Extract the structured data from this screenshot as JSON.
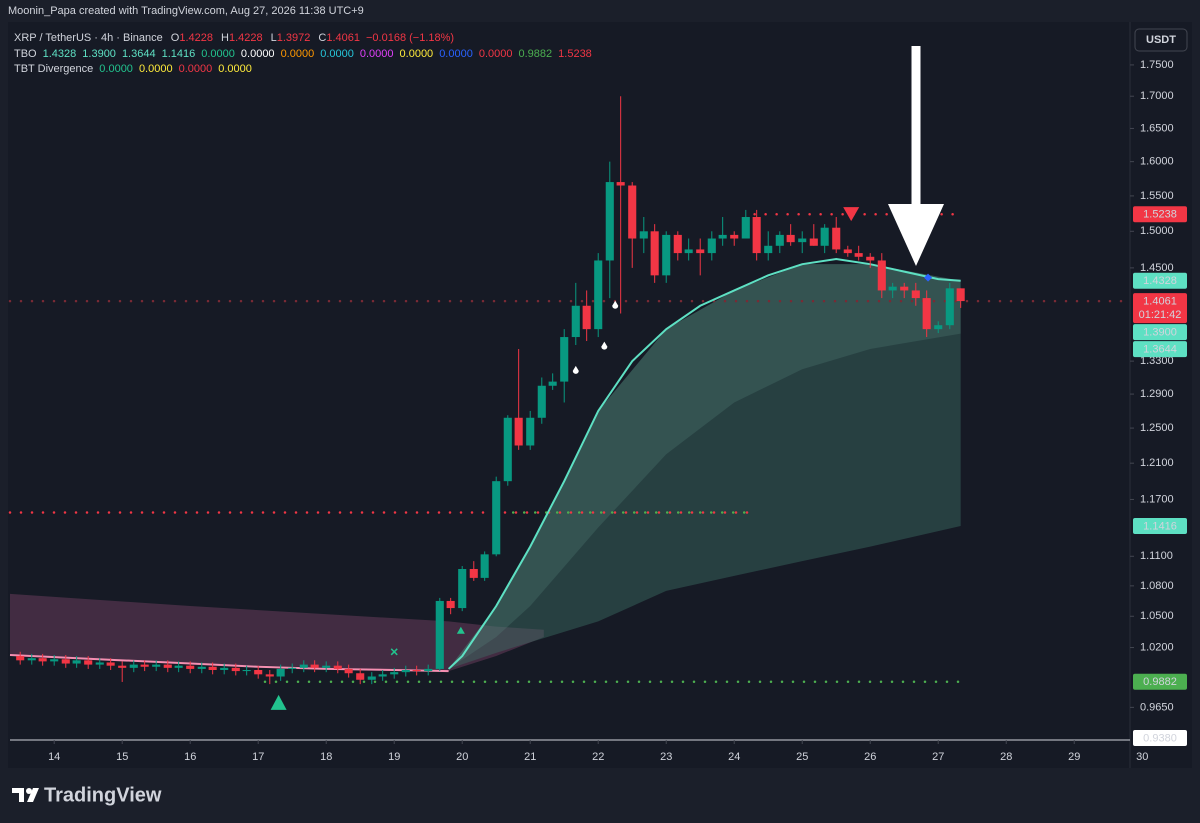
{
  "header": {
    "credit": "Moonin_Papa created with TradingView.com, Aug 27, 2026 11:38 UTC+9",
    "symbol": "XRP / TetherUS · 4h · Binance",
    "ohlc": [
      {
        "label": "O",
        "value": "1.4228"
      },
      {
        "label": "H",
        "value": "1.4228"
      },
      {
        "label": "L",
        "value": "1.3972"
      },
      {
        "label": "C",
        "value": "1.4061"
      }
    ],
    "change": "−0.0168 (−1.18%)"
  },
  "indicators": [
    {
      "name": "TBO",
      "values": [
        {
          "text": "1.4328",
          "color": "#5ee0c3"
        },
        {
          "text": "1.3900",
          "color": "#5ee0c3"
        },
        {
          "text": "1.3644",
          "color": "#5ee0c3"
        },
        {
          "text": "1.1416",
          "color": "#5ee0c3"
        },
        {
          "text": "0.0000",
          "color": "#22c38e"
        },
        {
          "text": "0.0000",
          "color": "#ffffff"
        },
        {
          "text": "0.0000",
          "color": "#ff9800"
        },
        {
          "text": "0.0000",
          "color": "#26c6da"
        },
        {
          "text": "0.0000",
          "color": "#e040fb"
        },
        {
          "text": "0.0000",
          "color": "#ffeb3b"
        },
        {
          "text": "0.0000",
          "color": "#2962ff"
        },
        {
          "text": "0.0000",
          "color": "#f23645"
        },
        {
          "text": "0.9882",
          "color": "#4caf50"
        },
        {
          "text": "1.5238",
          "color": "#f23645"
        }
      ]
    },
    {
      "name": "TBT Divergence",
      "values": [
        {
          "text": "0.0000",
          "color": "#22c38e"
        },
        {
          "text": "0.0000",
          "color": "#ffeb3b"
        },
        {
          "text": "0.0000",
          "color": "#f23645"
        },
        {
          "text": "0.0000",
          "color": "#ffeb3b"
        }
      ]
    }
  ],
  "currency": "USDT",
  "brand": "TradingView",
  "chart_data": {
    "type": "candlestick",
    "log_scale": true,
    "grid": false,
    "up_color": "#089981",
    "down_color": "#f23645",
    "xlim": [
      13.35,
      29.82
    ],
    "xticks": [
      14,
      15,
      16,
      17,
      18,
      19,
      20,
      21,
      22,
      23,
      24,
      25,
      26,
      27,
      28,
      29,
      30
    ],
    "ylim": [
      0.938,
      1.821
    ],
    "yticks": [
      {
        "value": 1.75,
        "label": "1.7500"
      },
      {
        "value": 1.7,
        "label": "1.7000"
      },
      {
        "value": 1.65,
        "label": "1.6500"
      },
      {
        "value": 1.6,
        "label": "1.6000"
      },
      {
        "value": 1.55,
        "label": "1.5500"
      },
      {
        "value": 1.5,
        "label": "1.5000"
      },
      {
        "value": 1.45,
        "label": "1.4500"
      },
      {
        "value": 1.33,
        "label": "1.3300"
      },
      {
        "value": 1.29,
        "label": "1.2900"
      },
      {
        "value": 1.25,
        "label": "1.2500"
      },
      {
        "value": 1.21,
        "label": "1.2100"
      },
      {
        "value": 1.17,
        "label": "1.1700"
      },
      {
        "value": 1.11,
        "label": "1.1100"
      },
      {
        "value": 1.08,
        "label": "1.0800"
      },
      {
        "value": 1.05,
        "label": "1.0500"
      },
      {
        "value": 1.02,
        "label": "1.0200"
      },
      {
        "value": 0.965,
        "label": "0.9650"
      }
    ],
    "x": [
      13.5,
      13.67,
      13.83,
      14,
      14.17,
      14.33,
      14.5,
      14.67,
      14.83,
      15,
      15.17,
      15.33,
      15.5,
      15.67,
      15.83,
      16,
      16.17,
      16.33,
      16.5,
      16.67,
      16.83,
      17,
      17.17,
      17.33,
      17.5,
      17.67,
      17.83,
      18,
      18.17,
      18.33,
      18.5,
      18.67,
      18.83,
      19,
      19.17,
      19.33,
      19.5,
      19.67,
      19.83,
      20,
      20.17,
      20.33,
      20.5,
      20.67,
      20.83,
      21,
      21.17,
      21.33,
      21.5,
      21.67,
      21.83,
      22,
      22.17,
      22.33,
      22.5,
      22.67,
      22.83,
      23,
      23.17,
      23.33,
      23.5,
      23.67,
      23.83,
      24,
      24.17,
      24.33,
      24.5,
      24.67,
      24.83,
      25,
      25.17,
      25.33,
      25.5,
      25.67,
      25.83,
      26,
      26.17,
      26.33,
      26.5,
      26.67,
      26.83,
      27,
      27.17,
      27.33
    ],
    "open": [
      1.012,
      1.008,
      1.01,
      1.007,
      1.009,
      1.005,
      1.008,
      1.004,
      1.006,
      1.003,
      1.001,
      1.004,
      1.002,
      1.004,
      1.001,
      1.003,
      1.0,
      1.002,
      0.999,
      1.001,
      0.998,
      0.999,
      0.995,
      0.993,
      1.0,
      1.001,
      1.004,
      1.001,
      1.003,
      1.0,
      0.996,
      0.99,
      0.993,
      0.995,
      0.997,
      0.999,
      0.998,
      1.0,
      1.065,
      1.058,
      1.097,
      1.088,
      1.112,
      1.19,
      1.262,
      1.23,
      1.262,
      1.3,
      1.305,
      1.36,
      1.4,
      1.37,
      1.46,
      1.57,
      1.565,
      1.49,
      1.5,
      1.44,
      1.495,
      1.47,
      1.475,
      1.47,
      1.49,
      1.495,
      1.49,
      1.52,
      1.47,
      1.48,
      1.495,
      1.485,
      1.49,
      1.48,
      1.505,
      1.475,
      1.47,
      1.465,
      1.46,
      1.42,
      1.425,
      1.42,
      1.41,
      1.37,
      1.375,
      1.4228
    ],
    "high": [
      1.016,
      1.014,
      1.014,
      1.013,
      1.013,
      1.012,
      1.012,
      1.01,
      1.01,
      1.007,
      1.008,
      1.008,
      1.008,
      1.008,
      1.007,
      1.007,
      1.006,
      1.006,
      1.005,
      1.005,
      1.003,
      1.003,
      0.999,
      1.004,
      1.005,
      1.008,
      1.008,
      1.007,
      1.007,
      1.004,
      1.0,
      0.997,
      0.999,
      1.001,
      1.003,
      1.003,
      1.004,
      1.068,
      1.068,
      1.1,
      1.105,
      1.115,
      1.195,
      1.265,
      1.345,
      1.27,
      1.31,
      1.315,
      1.37,
      1.43,
      1.42,
      1.47,
      1.6,
      1.7,
      1.57,
      1.52,
      1.51,
      1.5,
      1.5,
      1.49,
      1.49,
      1.5,
      1.52,
      1.5,
      1.53,
      1.53,
      1.5,
      1.5,
      1.51,
      1.5,
      1.51,
      1.51,
      1.52,
      1.48,
      1.48,
      1.47,
      1.47,
      1.43,
      1.43,
      1.43,
      1.42,
      1.38,
      1.43,
      1.4228
    ],
    "low": [
      1.004,
      1.004,
      1.003,
      1.003,
      1.001,
      1.001,
      1.0,
      1.0,
      0.999,
      0.988,
      0.997,
      0.998,
      0.998,
      0.997,
      0.997,
      0.996,
      0.996,
      0.995,
      0.995,
      0.994,
      0.994,
      0.991,
      0.986,
      0.989,
      0.996,
      0.997,
      0.997,
      0.997,
      0.996,
      0.992,
      0.986,
      0.986,
      0.989,
      0.991,
      0.993,
      0.994,
      0.994,
      0.998,
      1.052,
      1.055,
      1.085,
      1.085,
      1.11,
      1.185,
      1.225,
      1.225,
      1.255,
      1.295,
      1.28,
      1.35,
      1.355,
      1.36,
      1.41,
      1.39,
      1.45,
      1.47,
      1.43,
      1.43,
      1.46,
      1.46,
      1.44,
      1.46,
      1.48,
      1.48,
      1.49,
      1.46,
      1.46,
      1.47,
      1.48,
      1.47,
      1.48,
      1.47,
      1.47,
      1.465,
      1.46,
      1.45,
      1.41,
      1.41,
      1.41,
      1.4,
      1.36,
      1.365,
      1.37,
      1.3972
    ],
    "close": [
      1.008,
      1.01,
      1.007,
      1.009,
      1.005,
      1.008,
      1.004,
      1.006,
      1.003,
      1.001,
      1.004,
      1.002,
      1.004,
      1.001,
      1.003,
      1.0,
      1.002,
      0.999,
      1.001,
      0.998,
      0.999,
      0.995,
      0.993,
      1.0,
      1.001,
      1.004,
      1.001,
      1.003,
      1.0,
      0.996,
      0.99,
      0.993,
      0.995,
      0.997,
      0.999,
      0.998,
      1.0,
      1.065,
      1.058,
      1.097,
      1.088,
      1.112,
      1.19,
      1.262,
      1.23,
      1.262,
      1.3,
      1.305,
      1.36,
      1.4,
      1.37,
      1.46,
      1.57,
      1.565,
      1.49,
      1.5,
      1.44,
      1.495,
      1.47,
      1.475,
      1.47,
      1.49,
      1.495,
      1.49,
      1.52,
      1.47,
      1.48,
      1.495,
      1.485,
      1.49,
      1.48,
      1.505,
      1.475,
      1.47,
      1.465,
      1.46,
      1.42,
      1.425,
      1.42,
      1.41,
      1.37,
      1.375,
      1.4228,
      1.4061
    ],
    "bands": [
      {
        "color": "rgba(150,80,120,0.35)",
        "x": [
          13.35,
          16,
          19.8,
          20.5,
          21.2
        ],
        "upper": [
          1.072,
          1.06,
          1.045,
          1.04,
          1.037
        ],
        "lower": [
          1.013,
          1.005,
          0.998,
          1.012,
          1.03
        ]
      },
      {
        "color": "rgba(60,110,100,0.45)",
        "x": [
          19.8,
          20.5,
          21,
          22,
          23,
          24,
          25,
          26,
          27.33
        ],
        "upper": [
          1.0,
          1.06,
          1.12,
          1.27,
          1.37,
          1.42,
          1.455,
          1.455,
          1.4328
        ],
        "lower": [
          1.0,
          1.015,
          1.025,
          1.045,
          1.075,
          1.09,
          1.105,
          1.12,
          1.1416
        ]
      },
      {
        "color": "rgba(90,140,130,0.25)",
        "x": [
          19.8,
          20.5,
          21,
          22,
          23,
          24,
          25,
          26,
          27.33
        ],
        "upper": [
          1.0,
          1.06,
          1.12,
          1.27,
          1.37,
          1.42,
          1.455,
          1.455,
          1.4328
        ],
        "lower": [
          1.0,
          1.03,
          1.06,
          1.14,
          1.22,
          1.28,
          1.32,
          1.345,
          1.3644
        ]
      }
    ],
    "lines": [
      {
        "color": "#f48fb1",
        "x": [
          13.35,
          15,
          16,
          17,
          18,
          19,
          19.8
        ],
        "values": [
          1.013,
          1.008,
          1.005,
          1.002,
          1.0,
          0.999,
          0.998
        ]
      },
      {
        "color": "#5ee0c3",
        "x": [
          19.8,
          20,
          20.5,
          21,
          21.5,
          22,
          22.5,
          23,
          23.5,
          24,
          24.5,
          25,
          25.5,
          26,
          26.5,
          27,
          27.33
        ],
        "values": [
          1.0,
          1.012,
          1.06,
          1.12,
          1.19,
          1.27,
          1.33,
          1.37,
          1.4,
          1.42,
          1.44,
          1.455,
          1.462,
          1.455,
          1.445,
          1.435,
          1.4328
        ]
      }
    ],
    "levels": [
      {
        "value": 1.156,
        "color": "#f23645",
        "x": [
          13.35,
          24.25
        ]
      },
      {
        "value": 1.156,
        "color": "#4caf50",
        "x": [
          20.75,
          24.25
        ]
      },
      {
        "value": 0.9882,
        "color": "#4caf50",
        "x": [
          17.1,
          27.33
        ]
      },
      {
        "value": 1.5238,
        "color": "#f23645",
        "x": [
          24.3,
          27.33
        ]
      },
      {
        "value": 1.4061,
        "color": "#7a2a35",
        "x": [
          13.35,
          29.82
        ]
      }
    ],
    "markers": [
      {
        "shape": "triangle-up",
        "color": "#22c38e",
        "x": 17.3,
        "value": 0.969
      },
      {
        "shape": "triangle-down",
        "color": "#f23645",
        "x": 25.72,
        "value": 1.524
      },
      {
        "shape": "triangle-up-small",
        "color": "#22c38e",
        "x": 19.98,
        "value": 1.036
      },
      {
        "shape": "cross",
        "color": "#22c38e",
        "x": 19.0,
        "value": 1.016
      },
      {
        "shape": "drop",
        "color": "#ffffff",
        "x": 21.67,
        "value": 1.318
      },
      {
        "shape": "drop",
        "color": "#ffffff",
        "x": 22.09,
        "value": 1.348
      },
      {
        "shape": "drop",
        "color": "#ffffff",
        "x": 22.25,
        "value": 1.4
      },
      {
        "shape": "diamond",
        "color": "#2962ff",
        "x": 26.85,
        "value": 1.437
      }
    ],
    "price_labels": [
      {
        "value": 1.5238,
        "label": "1.5238",
        "color": "#f23645"
      },
      {
        "value": 1.4328,
        "label": "1.4328",
        "color": "#5ee0c3"
      },
      {
        "value": 1.4061,
        "label": "1.4061",
        "sub": "01:21:42",
        "color": "#f23645"
      },
      {
        "value": 1.39,
        "label": "1.3900",
        "color": "#5ee0c3"
      },
      {
        "value": 1.3644,
        "label": "1.3644",
        "color": "#5ee0c3"
      },
      {
        "value": 1.1416,
        "label": "1.1416",
        "color": "#5ee0c3"
      },
      {
        "value": 0.9882,
        "label": "0.9882",
        "color": "#4caf50"
      },
      {
        "value": 0.938,
        "label": "0.9380",
        "color": "#ffffff"
      }
    ]
  }
}
